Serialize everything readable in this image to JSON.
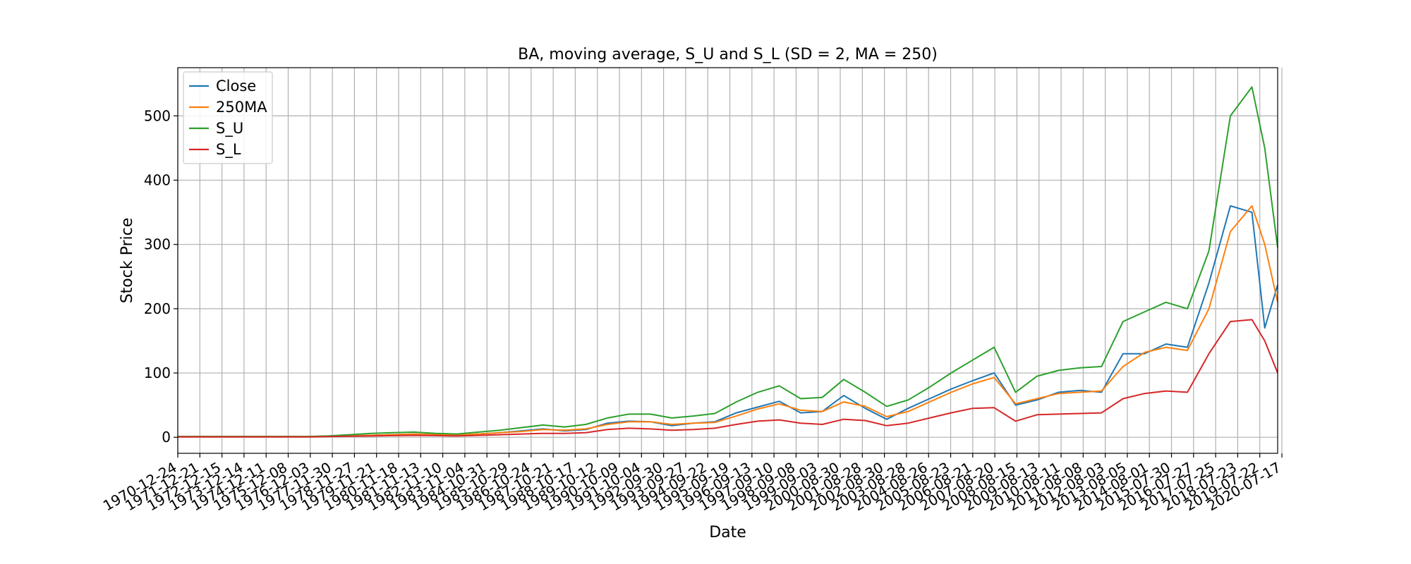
{
  "chart_data": {
    "type": "line",
    "title": "BA, moving average, S_U and S_L (SD = 2, MA = 250)",
    "xlabel": "Date",
    "ylabel": "Stock Price",
    "ylim": [
      -25,
      575
    ],
    "yticks": [
      0,
      100,
      200,
      300,
      400,
      500
    ],
    "grid": true,
    "legend_position": "top-left",
    "x_tick_labels": [
      "1970-12-24",
      "1971-12-21",
      "1972-12-15",
      "1973-12-14",
      "1974-12-11",
      "1975-12-08",
      "1976-12-03",
      "1977-11-30",
      "1978-11-27",
      "1979-11-21",
      "1980-11-18",
      "1981-11-13",
      "1982-11-10",
      "1983-11-04",
      "1984-10-31",
      "1985-10-29",
      "1986-10-24",
      "1987-10-21",
      "1988-10-17",
      "1989-10-12",
      "1990-10-09",
      "1991-10-04",
      "1992-09-30",
      "1993-09-27",
      "1994-09-22",
      "1995-09-19",
      "1996-09-13",
      "1997-09-10",
      "1998-09-08",
      "1999-09-03",
      "2000-08-30",
      "2001-08-28",
      "2002-08-30",
      "2003-08-28",
      "2004-08-26",
      "2005-08-23",
      "2006-08-21",
      "2007-08-20",
      "2008-08-15",
      "2009-08-13",
      "2010-08-11",
      "2011-08-08",
      "2012-08-03",
      "2013-08-05",
      "2014-08-01",
      "2015-07-30",
      "2016-07-27",
      "2017-07-25",
      "2018-07-23",
      "2019-07-22",
      "2020-07-17"
    ],
    "x": [
      1970,
      1971,
      1972,
      1973,
      1974,
      1975,
      1976,
      1977,
      1978,
      1979,
      1980,
      1981,
      1982,
      1983,
      1984,
      1985,
      1986,
      1987,
      1988,
      1989,
      1990,
      1991,
      1992,
      1993,
      1994,
      1995,
      1996,
      1997,
      1998,
      1999,
      2000,
      2001,
      2002,
      2003,
      2004,
      2005,
      2006,
      2007,
      2008,
      2009,
      2010,
      2011,
      2012,
      2013,
      2014,
      2015,
      2016,
      2017,
      2018,
      2019,
      2020,
      2020.6,
      2021.2
    ],
    "series": [
      {
        "name": "Close",
        "color": "#1f77b4",
        "values": [
          1,
          1,
          1,
          1,
          1,
          1,
          1,
          1.5,
          2,
          3,
          4,
          5,
          4,
          3,
          5,
          7,
          10,
          13,
          10,
          12,
          22,
          25,
          24,
          18,
          22,
          24,
          38,
          47,
          56,
          38,
          40,
          65,
          45,
          28,
          45,
          60,
          75,
          88,
          100,
          50,
          58,
          70,
          73,
          70,
          130,
          130,
          145,
          140,
          240,
          360,
          350,
          170,
          237
        ]
      },
      {
        "name": "250MA",
        "color": "#ff7f0e",
        "values": [
          1,
          1,
          1,
          1,
          1,
          1,
          1,
          1.5,
          2,
          3,
          4,
          5,
          4,
          3.5,
          5,
          7,
          9,
          12,
          11,
          13,
          20,
          24,
          24,
          20,
          22,
          23,
          33,
          44,
          52,
          42,
          40,
          55,
          48,
          32,
          40,
          55,
          70,
          83,
          93,
          52,
          60,
          68,
          70,
          72,
          110,
          132,
          140,
          135,
          200,
          320,
          360,
          300,
          210
        ]
      },
      {
        "name": "S_U",
        "color": "#2ca02c",
        "values": [
          1,
          1,
          1,
          1,
          1,
          1,
          1,
          2,
          4,
          6,
          7,
          8,
          6,
          5,
          8,
          11,
          15,
          19,
          16,
          20,
          30,
          36,
          36,
          30,
          33,
          37,
          55,
          70,
          80,
          60,
          62,
          90,
          70,
          48,
          58,
          78,
          100,
          120,
          140,
          70,
          95,
          104,
          108,
          110,
          180,
          195,
          210,
          200,
          290,
          500,
          545,
          450,
          295
        ]
      },
      {
        "name": "S_L",
        "color": "#d62728",
        "values": [
          0.5,
          0.5,
          0.5,
          0.5,
          0.5,
          0.5,
          0.5,
          1,
          1.5,
          2,
          2.5,
          3,
          2.5,
          2,
          3,
          4,
          5,
          6,
          6,
          7,
          12,
          14,
          13,
          11,
          12,
          14,
          20,
          25,
          27,
          22,
          20,
          28,
          26,
          18,
          22,
          30,
          38,
          45,
          46,
          25,
          35,
          36,
          37,
          38,
          60,
          68,
          72,
          70,
          130,
          180,
          183,
          150,
          100
        ]
      }
    ]
  }
}
